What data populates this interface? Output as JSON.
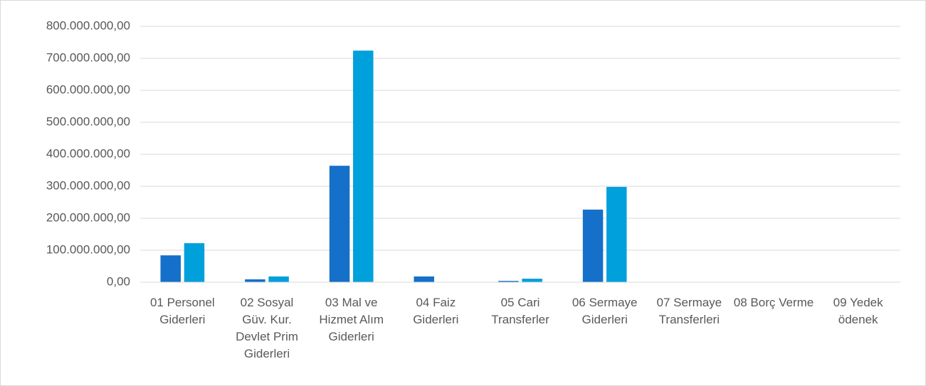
{
  "chart_data": {
    "type": "bar",
    "categories": [
      "01 Personel Giderleri",
      "02 Sosyal Güv. Kur. Devlet Prim Giderleri",
      "03 Mal ve Hizmet Alım Giderleri",
      "04 Faiz Giderleri",
      "05 Cari Transferler",
      "06 Sermaye Giderleri",
      "07 Sermaye Transferleri",
      "08 Borç Verme",
      "09 Yedek ödenek"
    ],
    "series": [
      {
        "color": "#1470c8",
        "values": [
          84000000,
          9000000,
          364000000,
          18000000,
          4000000,
          227000000,
          0,
          0,
          0
        ]
      },
      {
        "color": "#00a0dc",
        "values": [
          122000000,
          18000000,
          724000000,
          0,
          11000000,
          298000000,
          0,
          0,
          0
        ]
      }
    ],
    "ylim": [
      0,
      800000000
    ],
    "yticks": [
      {
        "value": 0,
        "label": "0,00"
      },
      {
        "value": 100000000,
        "label": "100.000.000,00"
      },
      {
        "value": 200000000,
        "label": "200.000.000,00"
      },
      {
        "value": 300000000,
        "label": "300.000.000,00"
      },
      {
        "value": 400000000,
        "label": "400.000.000,00"
      },
      {
        "value": 500000000,
        "label": "500.000.000,00"
      },
      {
        "value": 600000000,
        "label": "600.000.000,00"
      },
      {
        "value": 700000000,
        "label": "700.000.000,00"
      },
      {
        "value": 800000000,
        "label": "800.000.000,00"
      }
    ],
    "grid": true
  }
}
